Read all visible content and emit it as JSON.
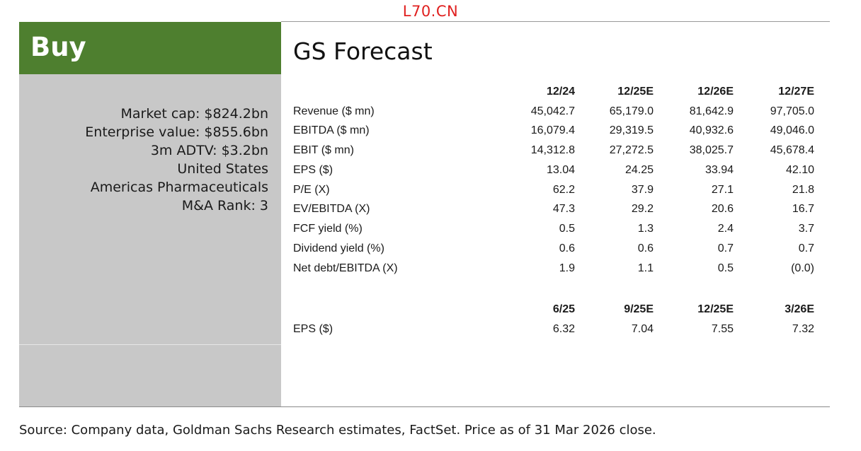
{
  "watermark": "L70.CN",
  "rating": "Buy",
  "stats": [
    "Market cap: $824.2bn",
    "Enterprise value: $855.6bn",
    "3m ADTV: $3.2bn",
    "United States",
    "Americas Pharmaceuticals",
    "M&A Rank: 3"
  ],
  "forecast": {
    "title": "GS Forecast",
    "annual_headers": [
      "12/24",
      "12/25E",
      "12/26E",
      "12/27E"
    ],
    "annual_rows": [
      {
        "label": "Revenue ($ mn)",
        "values": [
          "45,042.7",
          "65,179.0",
          "81,642.9",
          "97,705.0"
        ]
      },
      {
        "label": "EBITDA ($ mn)",
        "values": [
          "16,079.4",
          "29,319.5",
          "40,932.6",
          "49,046.0"
        ]
      },
      {
        "label": "EBIT ($ mn)",
        "values": [
          "14,312.8",
          "27,272.5",
          "38,025.7",
          "45,678.4"
        ]
      },
      {
        "label": "EPS ($)",
        "values": [
          "13.04",
          "24.25",
          "33.94",
          "42.10"
        ]
      },
      {
        "label": "P/E (X)",
        "values": [
          "62.2",
          "37.9",
          "27.1",
          "21.8"
        ]
      },
      {
        "label": "EV/EBITDA (X)",
        "values": [
          "47.3",
          "29.2",
          "20.6",
          "16.7"
        ]
      },
      {
        "label": "FCF yield (%)",
        "values": [
          "0.5",
          "1.3",
          "2.4",
          "3.7"
        ]
      },
      {
        "label": "Dividend yield (%)",
        "values": [
          "0.6",
          "0.6",
          "0.7",
          "0.7"
        ]
      },
      {
        "label": "Net debt/EBITDA (X)",
        "values": [
          "1.9",
          "1.1",
          "0.5",
          "(0.0)"
        ]
      }
    ],
    "quarterly_headers": [
      "6/25",
      "9/25E",
      "12/25E",
      "3/26E"
    ],
    "quarterly_rows": [
      {
        "label": "EPS ($)",
        "values": [
          "6.32",
          "7.04",
          "7.55",
          "7.32"
        ]
      }
    ]
  },
  "source": "Source: Company data, Goldman Sachs Research estimates, FactSet. Price as of 31 Mar 2026 close.",
  "colors": {
    "rating_green": "#4e7f2f",
    "panel_gray": "#c8c8c8",
    "watermark_red": "#e0201f"
  }
}
